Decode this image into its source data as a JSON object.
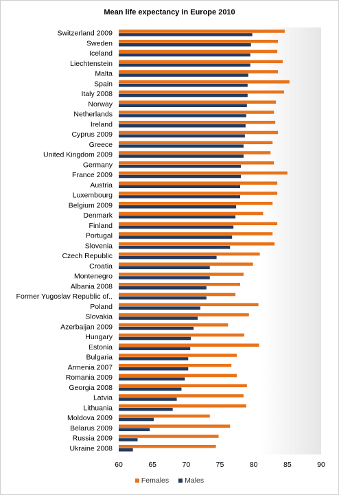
{
  "chart_data": {
    "type": "bar",
    "orientation": "horizontal",
    "title": "Mean life expectancy in Europe 2010",
    "xlabel": "",
    "ylabel": "",
    "xlim": [
      60,
      90
    ],
    "xticks": [
      60,
      65,
      70,
      75,
      80,
      85,
      90
    ],
    "grid": false,
    "legend_position": "bottom",
    "categories": [
      "Switzerland 2009",
      "Sweden",
      "Iceland",
      "Liechtenstein",
      "Malta",
      "Spain",
      "Italy 2008",
      "Norway",
      "Netherlands",
      "Ireland",
      "Cyprus 2009",
      "Greece",
      "United Kingdom 2009",
      "Germany",
      "France 2009",
      "Austria",
      "Luxembourg",
      "Belgium 2009",
      "Denmark",
      "Finland",
      "Portugal",
      "Slovenia",
      "Czech Republic",
      "Croatia",
      "Montenegro",
      "Albania 2008",
      "Former Yugoslav Republic of..",
      "Poland",
      "Slovakia",
      "Azerbaijan 2009",
      "Hungary",
      "Estonia",
      "Bulgaria",
      "Armenia 2007",
      "Romania 2009",
      "Georgia 2008",
      "Latvia",
      "Lithuania",
      "Moldova 2009",
      "Belarus 2009",
      "Russia 2009",
      "Ukraine 2008"
    ],
    "series": [
      {
        "name": "Females",
        "color": "#e8731a",
        "values": [
          84.6,
          83.6,
          83.5,
          84.3,
          83.6,
          85.3,
          84.5,
          83.3,
          83.0,
          83.2,
          83.6,
          82.8,
          82.5,
          83.0,
          85.0,
          83.5,
          83.5,
          82.8,
          81.4,
          83.5,
          82.8,
          83.1,
          80.9,
          79.9,
          78.5,
          78.0,
          77.3,
          80.7,
          79.3,
          76.2,
          78.6,
          80.8,
          77.5,
          76.7,
          77.5,
          79.0,
          78.5,
          78.9,
          73.5,
          76.5,
          74.8,
          74.4
        ]
      },
      {
        "name": "Males",
        "color": "#243a5e",
        "values": [
          79.8,
          79.6,
          79.5,
          79.5,
          79.2,
          79.1,
          79.1,
          79.0,
          78.9,
          78.8,
          78.7,
          78.5,
          78.5,
          78.1,
          78.1,
          78.0,
          78.0,
          77.4,
          77.3,
          77.0,
          76.8,
          76.5,
          74.5,
          73.5,
          73.5,
          73.0,
          73.0,
          72.1,
          71.7,
          71.1,
          70.7,
          70.6,
          70.3,
          70.3,
          69.8,
          69.3,
          68.6,
          68.0,
          65.2,
          64.6,
          62.8,
          62.1
        ]
      }
    ]
  }
}
